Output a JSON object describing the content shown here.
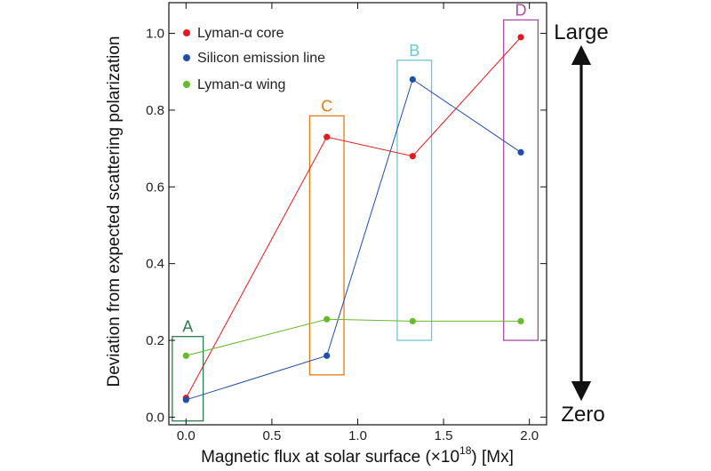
{
  "chart_data": {
    "type": "line",
    "xlabel": "Magnetic flux at solar surface (×10",
    "xlabel_exponent": "18",
    "xlabel_unit": ") [Mx]",
    "ylabel": "Deviation from expected scattering polarization",
    "xlim": [
      -0.1,
      2.1
    ],
    "ylim": [
      -0.02,
      1.08
    ],
    "x_ticks": [
      0.0,
      0.5,
      1.0,
      1.5,
      2.0
    ],
    "x_tick_labels": [
      "0.0",
      "0.5",
      "1.0",
      "1.5",
      "2.0"
    ],
    "y_ticks": [
      0.0,
      0.2,
      0.4,
      0.6,
      0.8,
      1.0
    ],
    "y_tick_labels": [
      "0.0",
      "0.2",
      "0.4",
      "0.6",
      "0.8",
      "1.0"
    ],
    "legend_position": "top-left",
    "x": [
      0.0,
      0.82,
      1.32,
      1.95
    ],
    "series": [
      {
        "name": "Lyman-α core",
        "color": "#e31a1c",
        "values": [
          0.05,
          0.73,
          0.68,
          0.99
        ]
      },
      {
        "name": "Silicon emission line",
        "color": "#1f4fa8",
        "values": [
          0.045,
          0.16,
          0.88,
          0.69
        ]
      },
      {
        "name": "Lyman-α wing",
        "color": "#66bb2a",
        "values": [
          0.16,
          0.255,
          0.25,
          0.25
        ]
      }
    ],
    "boxes": [
      {
        "label": "A",
        "color": "#2e7d4f",
        "x0": -0.08,
        "x1": 0.1,
        "y0": -0.01,
        "y1": 0.21
      },
      {
        "label": "C",
        "color": "#e07b1a",
        "x0": 0.72,
        "x1": 0.92,
        "y0": 0.11,
        "y1": 0.785
      },
      {
        "label": "B",
        "color": "#6cc8d0",
        "x0": 1.23,
        "x1": 1.43,
        "y0": 0.2,
        "y1": 0.93
      },
      {
        "label": "D",
        "color": "#a64ca6",
        "x0": 1.85,
        "x1": 2.05,
        "y0": 0.2,
        "y1": 1.035
      }
    ],
    "arrow": {
      "top_label": "Large",
      "bottom_label": "Zero"
    }
  }
}
